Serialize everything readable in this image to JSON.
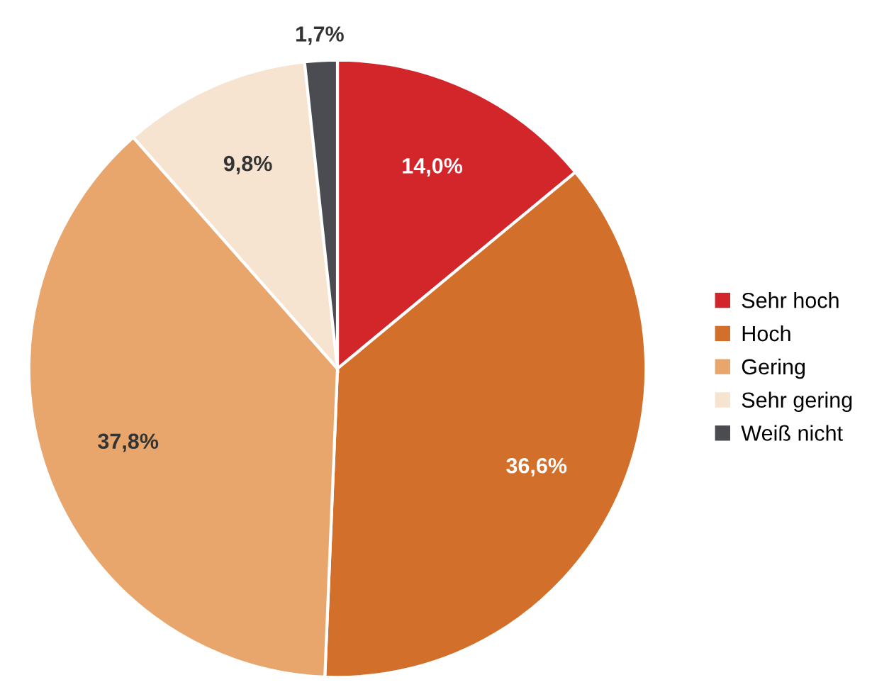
{
  "chart_data": {
    "type": "pie",
    "categories": [
      "Sehr hoch",
      "Hoch",
      "Gering",
      "Sehr gering",
      "Weiß nicht"
    ],
    "values": [
      14.0,
      36.6,
      37.8,
      9.8,
      1.7
    ],
    "colors": [
      "#d3262b",
      "#d2702b",
      "#e8a66c",
      "#f6e4d0",
      "#4b4c52"
    ],
    "value_labels": [
      "14,0%",
      "36,6%",
      "37,8%",
      "9,8%",
      "1,7%"
    ],
    "legend": "right"
  }
}
